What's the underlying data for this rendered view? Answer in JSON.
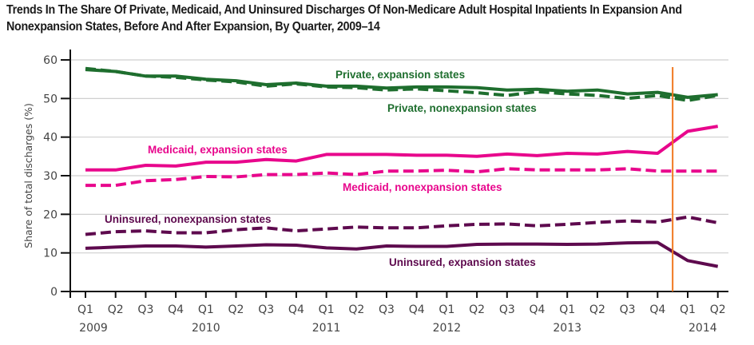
{
  "title": "Trends In The Share Of Private, Medicaid, And Uninsured Discharges Of Non-Medicare Adult Hospital Inpatients In Expansion And Nonexpansion States, Before And After Expansion, By Quarter, 2009–14",
  "chart_data": {
    "type": "line",
    "title": "Trends In The Share Of Private, Medicaid, And Uninsured Discharges Of Non-Medicare Adult Hospital Inpatients In Expansion And Nonexpansion States, Before And After Expansion, By Quarter, 2009–14",
    "xlabel": "",
    "ylabel": "Share of total discharges (%)",
    "ylim": [
      0,
      60
    ],
    "yticks": [
      0,
      10,
      20,
      30,
      40,
      50,
      60
    ],
    "grid": true,
    "x": [
      "Q1 2009",
      "Q2 2009",
      "Q3 2009",
      "Q4 2009",
      "Q1 2010",
      "Q2 2010",
      "Q3 2010",
      "Q4 2010",
      "Q1 2011",
      "Q2 2011",
      "Q3 2011",
      "Q4 2011",
      "Q1 2012",
      "Q2 2012",
      "Q3 2012",
      "Q4 2012",
      "Q1 2013",
      "Q2 2013",
      "Q3 2013",
      "Q4 2013",
      "Q1 2014",
      "Q2 2014"
    ],
    "quarter_labels": [
      "Q1",
      "Q2",
      "Q3",
      "Q4",
      "Q1",
      "Q2",
      "Q3",
      "Q4",
      "Q1",
      "Q2",
      "Q3",
      "Q4",
      "Q1",
      "Q2",
      "Q3",
      "Q4",
      "Q1",
      "Q2",
      "Q3",
      "Q4",
      "Q1",
      "Q2"
    ],
    "year_labels": [
      {
        "label": "2009",
        "index": 0
      },
      {
        "label": "2010",
        "index": 4
      },
      {
        "label": "2011",
        "index": 8
      },
      {
        "label": "2012",
        "index": 12
      },
      {
        "label": "2013",
        "index": 16
      },
      {
        "label": "2014",
        "index": 20.5
      }
    ],
    "expansion_marker": {
      "between": [
        "Q4 2013",
        "Q1 2014"
      ],
      "color": "#f07820"
    },
    "series": [
      {
        "name": "Private, expansion states",
        "color": "#1e6e2e",
        "dashed": false,
        "values": [
          57.5,
          57.0,
          55.8,
          55.8,
          55.0,
          54.6,
          53.6,
          54.0,
          53.2,
          53.2,
          52.7,
          53.0,
          53.0,
          52.8,
          52.2,
          52.4,
          51.9,
          52.2,
          51.2,
          51.6,
          50.3,
          51.0
        ]
      },
      {
        "name": "Private, nonexpansion states",
        "color": "#1e6e2e",
        "dashed": true,
        "values": [
          57.8,
          57.0,
          55.8,
          55.5,
          54.8,
          54.3,
          53.2,
          53.8,
          53.0,
          52.8,
          52.2,
          52.5,
          52.0,
          51.5,
          50.8,
          51.8,
          51.2,
          50.8,
          50.0,
          50.8,
          49.5,
          50.8
        ]
      },
      {
        "name": "Medicaid, expansion states",
        "color": "#e8068c",
        "dashed": false,
        "values": [
          31.5,
          31.5,
          32.7,
          32.5,
          33.5,
          33.5,
          34.2,
          33.8,
          35.5,
          35.5,
          35.5,
          35.3,
          35.3,
          35.0,
          35.6,
          35.2,
          35.8,
          35.6,
          36.3,
          35.8,
          41.5,
          42.8
        ]
      },
      {
        "name": "Medicaid, nonexpansion states",
        "color": "#e8068c",
        "dashed": true,
        "values": [
          27.5,
          27.5,
          28.7,
          29.0,
          29.8,
          29.7,
          30.3,
          30.3,
          30.7,
          30.3,
          31.2,
          31.2,
          31.4,
          31.0,
          31.8,
          31.5,
          31.5,
          31.5,
          31.8,
          31.2,
          31.2,
          31.2
        ]
      },
      {
        "name": "Uninsured, nonexpansion states",
        "color": "#5e0a4e",
        "dashed": true,
        "values": [
          14.8,
          15.5,
          15.7,
          15.2,
          15.2,
          16.0,
          16.5,
          15.7,
          16.2,
          16.7,
          16.5,
          16.5,
          17.0,
          17.4,
          17.5,
          17.0,
          17.4,
          17.9,
          18.3,
          18.0,
          19.3,
          17.8
        ]
      },
      {
        "name": "Uninsured, expansion states",
        "color": "#5e0a4e",
        "dashed": false,
        "values": [
          11.2,
          11.5,
          11.8,
          11.8,
          11.5,
          11.8,
          12.1,
          12.0,
          11.3,
          11.0,
          11.8,
          11.7,
          11.7,
          12.2,
          12.3,
          12.3,
          12.2,
          12.3,
          12.6,
          12.7,
          8.0,
          6.5
        ]
      }
    ],
    "annotations": [
      {
        "text": "Private, expansion states",
        "series": 0
      },
      {
        "text": "Private, nonexpansion states",
        "series": 1
      },
      {
        "text": "Medicaid, expansion states",
        "series": 2
      },
      {
        "text": "Medicaid, nonexpansion states",
        "series": 3
      },
      {
        "text": "Uninsured, nonexpansion states",
        "series": 4
      },
      {
        "text": "Uninsured, expansion states",
        "series": 5
      }
    ]
  }
}
